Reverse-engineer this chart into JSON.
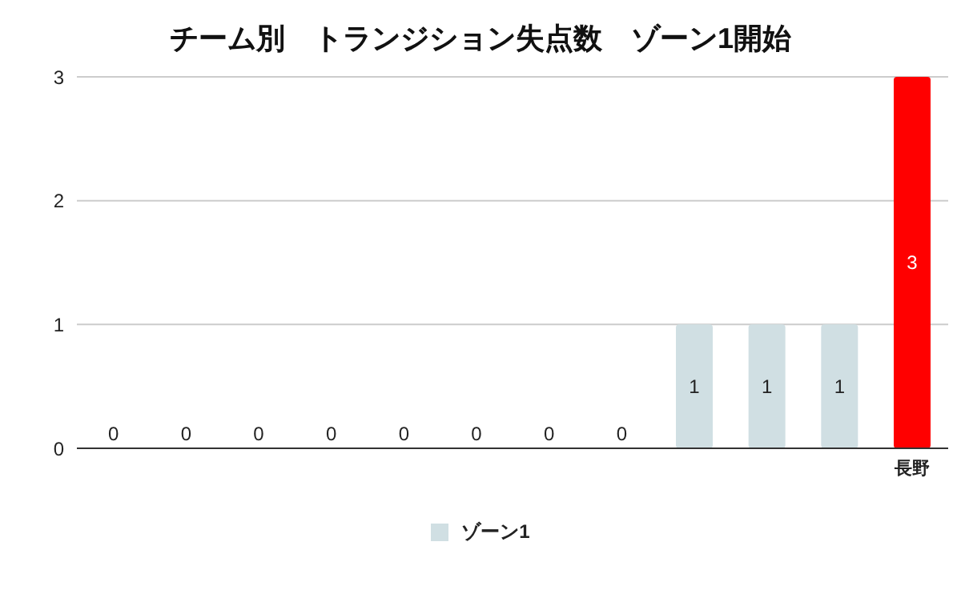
{
  "chart_data": {
    "type": "bar",
    "title": "チーム別　トランジション失点数　ゾーン1開始",
    "categories": [
      null,
      null,
      null,
      null,
      null,
      null,
      null,
      null,
      null,
      null,
      null,
      "長野"
    ],
    "series": [
      {
        "name": "ゾーン1",
        "color": "#d0dfe3",
        "colors": [
          "#d0dfe3",
          "#d0dfe3",
          "#d0dfe3",
          "#d0dfe3",
          "#d0dfe3",
          "#d0dfe3",
          "#d0dfe3",
          "#d0dfe3",
          "#d0dfe3",
          "#d0dfe3",
          "#d0dfe3",
          "#ff0000"
        ],
        "values": [
          0,
          0,
          0,
          0,
          0,
          0,
          0,
          0,
          1,
          1,
          1,
          3
        ]
      }
    ],
    "ylim": [
      0,
      3
    ],
    "yticks": [
      0,
      1,
      2,
      3
    ],
    "grid": "y",
    "legend": "bottom",
    "data_labels": true
  }
}
